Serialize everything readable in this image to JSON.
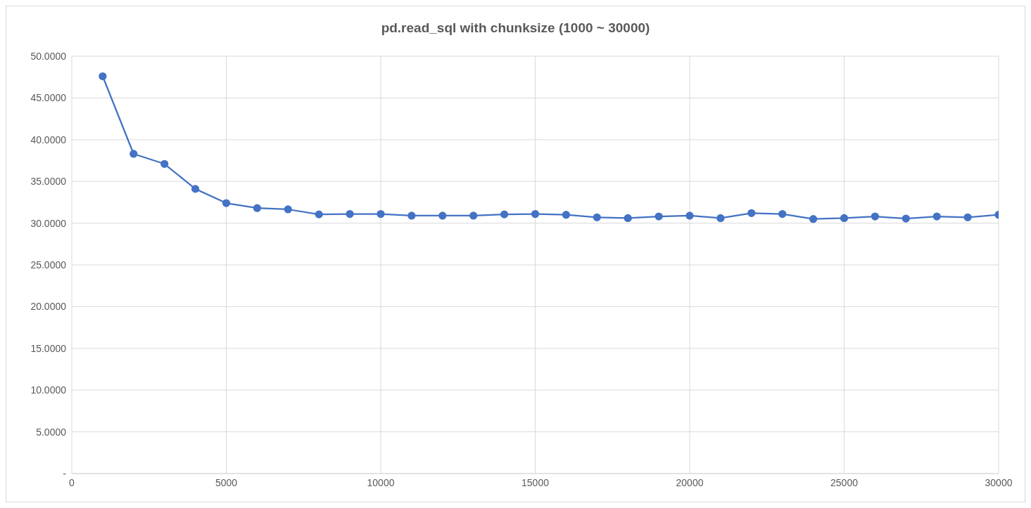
{
  "chart_data": {
    "type": "line",
    "title": "pd.read_sql with chunksize (1000 ~ 30000)",
    "x": [
      1000,
      2000,
      3000,
      4000,
      5000,
      6000,
      7000,
      8000,
      9000,
      10000,
      11000,
      12000,
      13000,
      14000,
      15000,
      16000,
      17000,
      18000,
      19000,
      20000,
      21000,
      22000,
      23000,
      24000,
      25000,
      26000,
      27000,
      28000,
      29000,
      30000
    ],
    "series": [
      {
        "color": "#4472c4",
        "values": [
          47.6,
          38.3,
          37.1,
          34.1,
          32.4,
          31.8,
          31.65,
          31.05,
          31.1,
          31.1,
          30.9,
          30.9,
          30.9,
          31.05,
          31.1,
          31.0,
          30.7,
          30.6,
          30.8,
          30.9,
          30.6,
          31.2,
          31.1,
          30.5,
          30.6,
          30.8,
          30.55,
          30.8,
          30.7,
          31.0
        ]
      }
    ],
    "xlim": [
      0,
      30000
    ],
    "xticks": [
      0,
      5000,
      10000,
      15000,
      20000,
      25000,
      30000
    ],
    "ylim": [
      0,
      50
    ],
    "yticks": [
      {
        "value": 0,
        "label": "-"
      },
      {
        "value": 5,
        "label": "5.0000"
      },
      {
        "value": 10,
        "label": "10.0000"
      },
      {
        "value": 15,
        "label": "15.0000"
      },
      {
        "value": 20,
        "label": "20.0000"
      },
      {
        "value": 25,
        "label": "25.0000"
      },
      {
        "value": 30,
        "label": "30.0000"
      },
      {
        "value": 35,
        "label": "35.0000"
      },
      {
        "value": 40,
        "label": "40.0000"
      },
      {
        "value": 45,
        "label": "45.0000"
      },
      {
        "value": 50,
        "label": "50.0000"
      }
    ],
    "grid": true,
    "marker": "circle",
    "line_style": "solid",
    "legend": false
  }
}
